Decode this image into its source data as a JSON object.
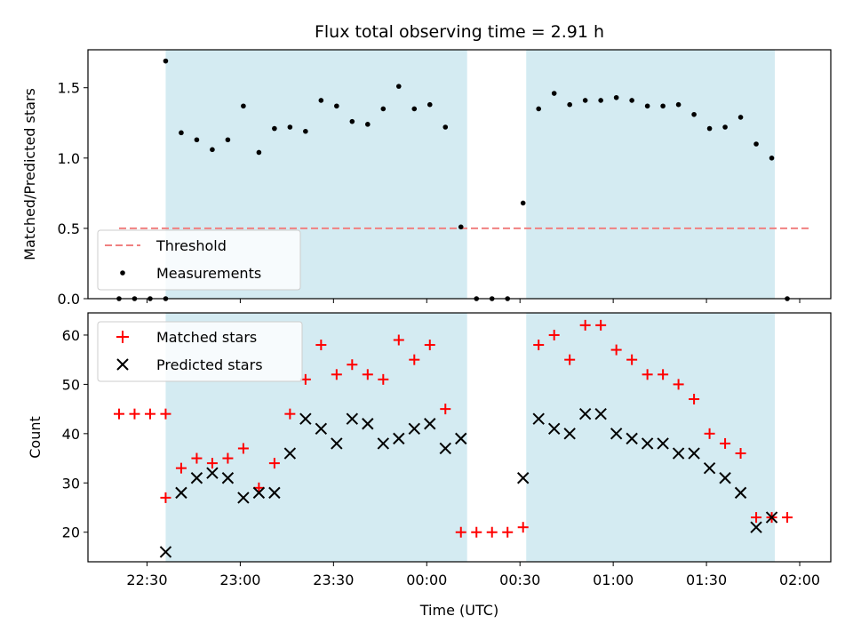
{
  "chart_data": {
    "title": "Flux total observing time = 2.91 h",
    "xlabel": "Time (UTC)",
    "x_tick_labels": [
      "22:30",
      "23:00",
      "23:30",
      "00:00",
      "00:30",
      "01:00",
      "01:30",
      "02:00"
    ],
    "x_range": [
      "22:11",
      "02:10"
    ],
    "shaded_intervals": [
      [
        "22:36",
        "00:13"
      ],
      [
        "00:32",
        "01:52"
      ]
    ],
    "colors": {
      "measurement": "#000000",
      "threshold": "#f08080",
      "matched": "#ff0000",
      "predicted": "#000000",
      "shade": "#add8e6"
    },
    "panels": [
      {
        "type": "scatter",
        "ylabel": "Matched/Predicted stars",
        "ylim": [
          0,
          1.77
        ],
        "y_ticks": [
          "0.0",
          "0.5",
          "1.0",
          "1.5"
        ],
        "grid": false,
        "legend_position": "lower-left",
        "threshold": {
          "name": "Threshold",
          "value": 0.5,
          "x_range": [
            "22:21",
            "02:03"
          ]
        },
        "series": [
          {
            "name": "Measurements",
            "x": [
              "22:21",
              "22:26",
              "22:31",
              "22:36",
              "22:36",
              "22:41",
              "22:46",
              "22:51",
              "22:56",
              "23:01",
              "23:06",
              "23:11",
              "23:16",
              "23:21",
              "23:26",
              "23:31",
              "23:36",
              "23:41",
              "23:46",
              "23:51",
              "23:56",
              "00:01",
              "00:06",
              "00:11",
              "00:16",
              "00:21",
              "00:26",
              "00:31",
              "00:36",
              "00:41",
              "00:46",
              "00:51",
              "00:56",
              "01:01",
              "01:06",
              "01:11",
              "01:16",
              "01:21",
              "01:26",
              "01:31",
              "01:36",
              "01:41",
              "01:46",
              "01:51",
              "01:56"
            ],
            "y": [
              0,
              0,
              0,
              0,
              1.69,
              1.18,
              1.13,
              1.06,
              1.13,
              1.37,
              1.04,
              1.21,
              1.22,
              1.19,
              1.41,
              1.37,
              1.26,
              1.24,
              1.35,
              1.51,
              1.35,
              1.38,
              1.22,
              0.51,
              0,
              0,
              0,
              0.68,
              1.35,
              1.46,
              1.38,
              1.41,
              1.41,
              1.43,
              1.41,
              1.37,
              1.37,
              1.38,
              1.31,
              1.21,
              1.22,
              1.29,
              1.1,
              1.0,
              0
            ]
          }
        ]
      },
      {
        "type": "scatter",
        "ylabel": "Count",
        "ylim": [
          14,
          64.5
        ],
        "y_ticks": [
          "20",
          "30",
          "40",
          "50",
          "60"
        ],
        "grid": false,
        "legend_position": "upper-left",
        "series": [
          {
            "name": "Matched stars",
            "marker": "+",
            "x": [
              "22:21",
              "22:26",
              "22:31",
              "22:36",
              "22:36",
              "22:41",
              "22:46",
              "22:51",
              "22:56",
              "23:01",
              "23:06",
              "23:11",
              "23:16",
              "23:21",
              "23:26",
              "23:31",
              "23:36",
              "23:41",
              "23:46",
              "23:51",
              "23:56",
              "00:01",
              "00:06",
              "00:11",
              "00:16",
              "00:21",
              "00:26",
              "00:31",
              "00:36",
              "00:41",
              "00:46",
              "00:51",
              "00:56",
              "01:01",
              "01:06",
              "01:11",
              "01:16",
              "01:21",
              "01:26",
              "01:31",
              "01:36",
              "01:41",
              "01:46",
              "01:51",
              "01:56"
            ],
            "y": [
              44,
              44,
              44,
              44,
              27,
              33,
              35,
              34,
              35,
              37,
              29,
              34,
              44,
              51,
              58,
              52,
              54,
              52,
              51,
              59,
              55,
              58,
              45,
              20,
              20,
              20,
              20,
              21,
              58,
              60,
              55,
              62,
              62,
              57,
              55,
              52,
              52,
              50,
              47,
              40,
              38,
              36,
              23,
              23,
              23
            ]
          },
          {
            "name": "Predicted stars",
            "marker": "x",
            "x": [
              "22:36",
              "22:41",
              "22:46",
              "22:51",
              "22:56",
              "23:01",
              "23:06",
              "23:11",
              "23:16",
              "23:21",
              "23:26",
              "23:31",
              "23:36",
              "23:41",
              "23:46",
              "23:51",
              "23:56",
              "00:01",
              "00:06",
              "00:11",
              "00:31",
              "00:36",
              "00:41",
              "00:46",
              "00:51",
              "00:56",
              "01:01",
              "01:06",
              "01:11",
              "01:16",
              "01:21",
              "01:26",
              "01:31",
              "01:36",
              "01:41",
              "01:46",
              "01:51"
            ],
            "y": [
              16,
              28,
              31,
              32,
              31,
              27,
              28,
              28,
              36,
              43,
              41,
              38,
              43,
              42,
              38,
              39,
              41,
              42,
              37,
              39,
              31,
              43,
              41,
              40,
              44,
              44,
              40,
              39,
              38,
              38,
              36,
              36,
              33,
              31,
              28,
              21,
              23
            ]
          }
        ]
      }
    ]
  }
}
